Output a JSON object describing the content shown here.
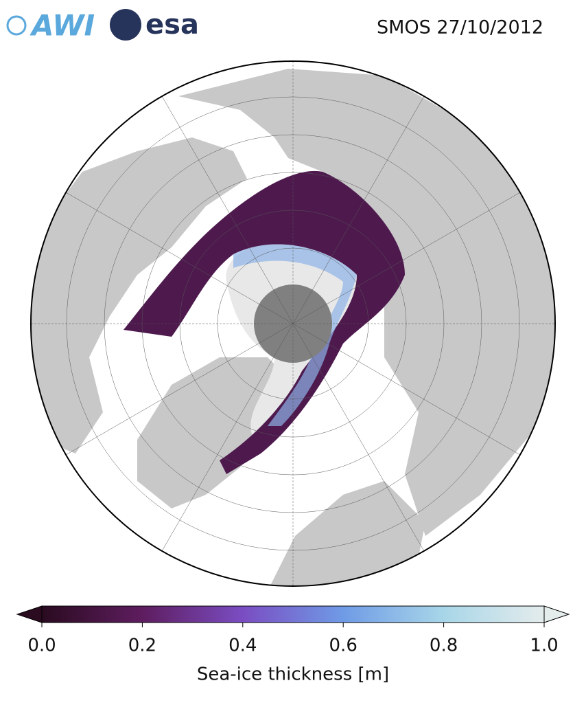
{
  "header": {
    "logos": [
      "AWI",
      "esa"
    ],
    "title": "SMOS 27/10/2012"
  },
  "colorbar": {
    "label": "Sea-ice thickness [m]",
    "lim": [
      0,
      1
    ],
    "ticks": [
      {
        "value": 0,
        "label": "0.0"
      },
      {
        "value": 0.2,
        "label": "0.2"
      },
      {
        "value": 0.4,
        "label": "0.4"
      },
      {
        "value": 0.6,
        "label": "0.6"
      },
      {
        "value": 0.8,
        "label": "0.8"
      },
      {
        "value": 1,
        "label": "1.0"
      }
    ],
    "colors": [
      "#2a0b20",
      "#5e1d5f",
      "#7a4dc2",
      "#6f9be6",
      "#a8d6e8",
      "#e4ecec"
    ]
  }
}
